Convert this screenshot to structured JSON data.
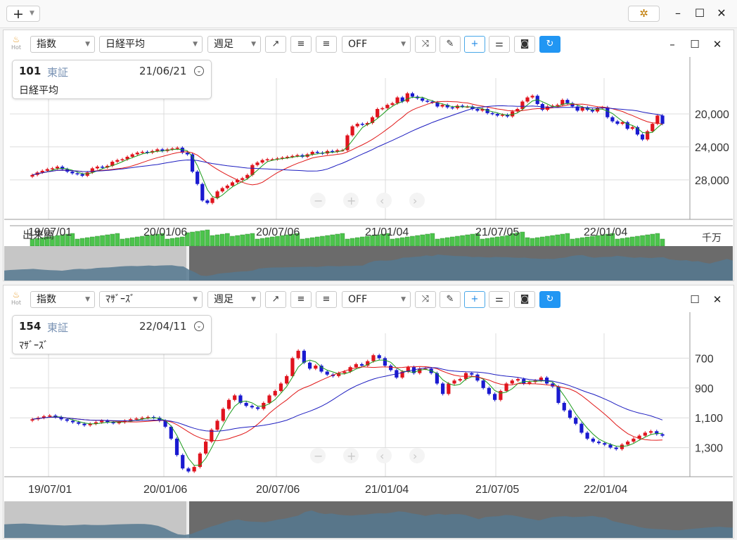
{
  "app": {
    "add_button": {
      "label": "+",
      "icon": "chevron-down-icon"
    },
    "settings_icon": "gear-icon",
    "window_controls": [
      "–",
      "☐",
      "✕"
    ]
  },
  "panels": [
    {
      "toolbar": {
        "hot_label": "Hot",
        "index_select": "指数",
        "symbol_select": "日経平均",
        "period_select": "週足",
        "overlay_select": "OFF"
      },
      "info": {
        "code": "101",
        "market": "東証",
        "date": "21/06/21",
        "name": "日経平均"
      },
      "volume_label": "出来高",
      "volume_unit": "千万",
      "y_ticks": [
        "28,000",
        "24,000",
        "20,000"
      ],
      "x_ticks": [
        "19/07/01",
        "20/01/06",
        "20/07/06",
        "21/01/04",
        "21/07/05",
        "22/01/04"
      ],
      "nav": [
        "−",
        "+",
        "‹",
        "›"
      ]
    },
    {
      "toolbar": {
        "hot_label": "Hot",
        "index_select": "指数",
        "symbol_select": "ﾏｻﾞｰｽﾞ",
        "period_select": "週足",
        "overlay_select": "OFF"
      },
      "info": {
        "code": "154",
        "market": "東証",
        "date": "22/04/11",
        "name": "ﾏｻﾞｰｽﾞ"
      },
      "y_ticks": [
        "1,300",
        "1,100",
        "900",
        "700"
      ],
      "x_ticks": [
        "19/07/01",
        "20/01/06",
        "20/07/06",
        "21/01/04",
        "21/07/05",
        "22/01/04"
      ],
      "nav": [
        "−",
        "+",
        "‹",
        "›"
      ]
    }
  ],
  "colors": {
    "up": "#e0141e",
    "down": "#1a1ad0",
    "ma_short": "#1a9a1a",
    "ma_mid": "#e01818",
    "ma_long": "#1d1dc0",
    "volume": "#4cc44c",
    "overview": "#55788f"
  },
  "chart_data": [
    {
      "type": "candlestick",
      "title": "日経平均",
      "x_labels": [
        "19/07/01",
        "20/01/06",
        "20/07/06",
        "21/01/04",
        "21/07/05",
        "22/01/04"
      ],
      "ylim": [
        17000,
        31500
      ],
      "y_ticks": [
        20000,
        24000,
        28000
      ],
      "close_series": [
        20600,
        20900,
        21100,
        21300,
        21400,
        21600,
        21300,
        21000,
        20800,
        20700,
        20500,
        20900,
        21400,
        21600,
        21500,
        21700,
        22200,
        22400,
        22500,
        22800,
        23100,
        23300,
        23400,
        23300,
        23500,
        23700,
        23500,
        23700,
        23800,
        23900,
        23300,
        23100,
        21000,
        19500,
        17500,
        17200,
        17800,
        18600,
        19000,
        19300,
        19700,
        20000,
        20200,
        20600,
        21800,
        22100,
        22400,
        22500,
        22500,
        22600,
        22700,
        22800,
        22900,
        23000,
        22800,
        23100,
        23400,
        23300,
        23200,
        23500,
        23400,
        23600,
        23600,
        25400,
        26500,
        26800,
        26700,
        26900,
        27600,
        28600,
        28700,
        29100,
        29300,
        30000,
        29500,
        30500,
        30100,
        29900,
        29600,
        29500,
        29400,
        28900,
        29100,
        28800,
        28700,
        29000,
        28900,
        28900,
        28600,
        28400,
        28600,
        28100,
        28000,
        27800,
        27900,
        27700,
        28300,
        28600,
        29500,
        30000,
        30200,
        29200,
        28500,
        28900,
        29000,
        29100,
        29700,
        29300,
        28900,
        28400,
        28800,
        28500,
        28300,
        28700,
        28800,
        27600,
        27100,
        26800,
        27000,
        26200,
        26400,
        25500,
        24900,
        25900,
        26800,
        27800,
        26800
      ],
      "ma": [
        {
          "name": "ma_short",
          "color": "#1a9a1a"
        },
        {
          "name": "ma_mid",
          "color": "#e01818"
        },
        {
          "name": "ma_long",
          "color": "#1d1dc0"
        }
      ]
    },
    {
      "type": "candlestick",
      "title": "ﾏｻﾞｰｽﾞ",
      "x_labels": [
        "19/07/01",
        "20/01/06",
        "20/07/06",
        "21/01/04",
        "21/07/05",
        "22/01/04"
      ],
      "ylim": [
        580,
        1420
      ],
      "y_ticks": [
        700,
        900,
        1100,
        1300
      ],
      "close_series": [
        890,
        900,
        910,
        915,
        905,
        890,
        880,
        870,
        860,
        850,
        860,
        870,
        880,
        870,
        865,
        870,
        880,
        890,
        895,
        900,
        905,
        900,
        880,
        840,
        760,
        650,
        560,
        540,
        570,
        660,
        740,
        820,
        880,
        960,
        1020,
        1050,
        1000,
        980,
        970,
        960,
        1000,
        1050,
        1080,
        1130,
        1180,
        1300,
        1350,
        1270,
        1230,
        1250,
        1210,
        1190,
        1180,
        1200,
        1210,
        1240,
        1260,
        1250,
        1280,
        1320,
        1300,
        1250,
        1220,
        1170,
        1210,
        1240,
        1200,
        1230,
        1230,
        1200,
        1130,
        1060,
        1130,
        1150,
        1160,
        1200,
        1190,
        1150,
        1100,
        1060,
        1020,
        1080,
        1130,
        1150,
        1160,
        1130,
        1140,
        1150,
        1170,
        1130,
        1110,
        1000,
        950,
        900,
        860,
        800,
        760,
        740,
        730,
        720,
        700,
        690,
        720,
        740,
        760,
        780,
        800,
        810,
        790,
        780
      ],
      "ma": [
        {
          "name": "ma_short",
          "color": "#1a9a1a"
        },
        {
          "name": "ma_mid",
          "color": "#e01818"
        },
        {
          "name": "ma_long",
          "color": "#1d1dc0"
        }
      ]
    }
  ]
}
